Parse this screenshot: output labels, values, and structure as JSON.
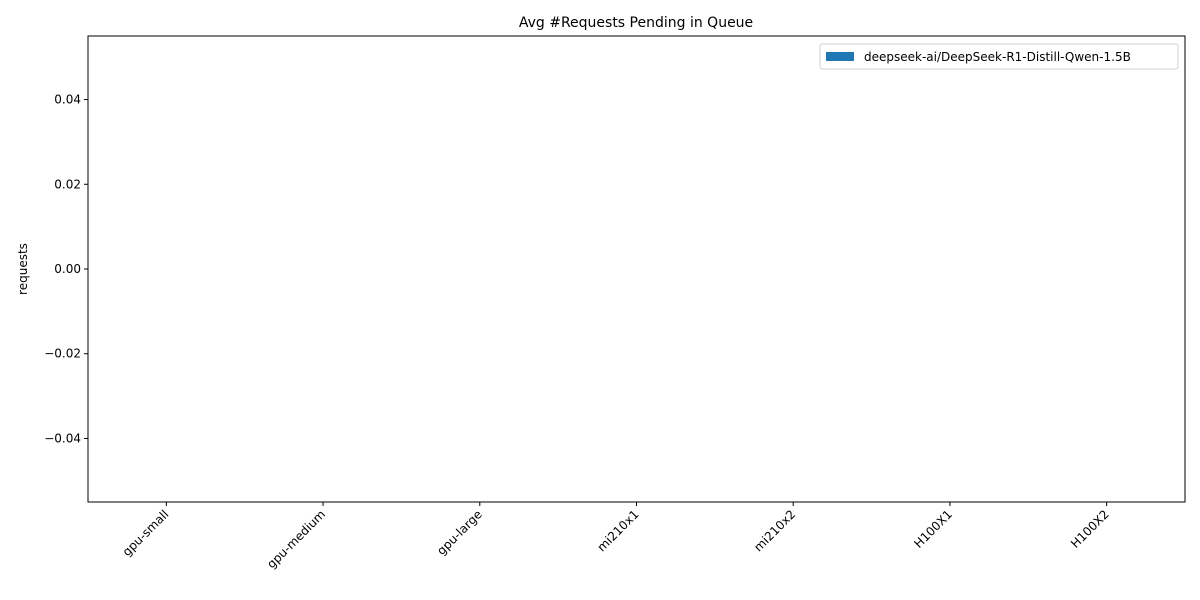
{
  "chart_data": {
    "type": "bar",
    "title": "Avg #Requests Pending in Queue",
    "xlabel": "",
    "ylabel": "requests",
    "categories": [
      "gpu-small",
      "gpu-medium",
      "gpu-large",
      "mi210x1",
      "mi210x2",
      "H100X1",
      "H100X2"
    ],
    "series": [
      {
        "name": "deepseek-ai/DeepSeek-R1-Distill-Qwen-1.5B",
        "values": [
          0,
          0,
          0,
          0,
          0,
          0,
          0
        ],
        "color": "#1f77b4"
      }
    ],
    "ylim": [
      -0.055,
      0.055
    ],
    "yticks": [
      -0.04,
      -0.02,
      0.0,
      0.02,
      0.04
    ],
    "ytick_labels": [
      "−0.04",
      "−0.02",
      "0.00",
      "0.02",
      "0.04"
    ],
    "grid": false,
    "legend_position": "top-right"
  }
}
